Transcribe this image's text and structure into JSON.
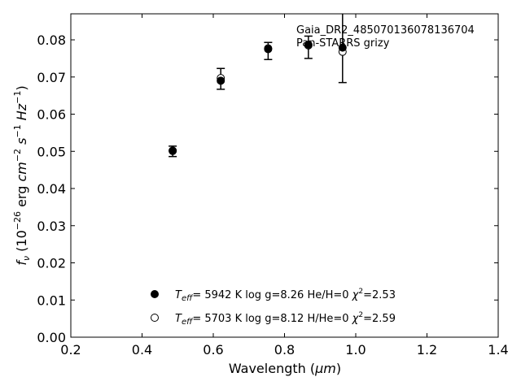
{
  "chart_data": {
    "type": "scatter",
    "xlabel_prefix": "Wavelength (",
    "xlabel_unit": "μm",
    "xlabel_suffix": ")",
    "xlim": [
      0.2,
      1.4
    ],
    "ylim": [
      0.0,
      0.087
    ],
    "xticks": [
      "0.2",
      "0.4",
      "0.6",
      "0.8",
      "1.0",
      "1.2",
      "1.4"
    ],
    "yticks": [
      "0.00",
      "0.01",
      "0.02",
      "0.03",
      "0.04",
      "0.05",
      "0.06",
      "0.07",
      "0.08"
    ],
    "annotations": [
      "Gaia_DR2_485070136078136704",
      "Pan-STARRS grizy"
    ],
    "observed": {
      "x": [
        0.486,
        0.621,
        0.754,
        0.867,
        0.963
      ],
      "y": [
        0.05,
        0.0695,
        0.077,
        0.078,
        0.079
      ],
      "err": [
        0.0014,
        0.0028,
        0.0023,
        0.003,
        0.0105
      ]
    },
    "series": [
      {
        "marker": "filled",
        "x": [
          0.486,
          0.621,
          0.754,
          0.867,
          0.963
        ],
        "y": [
          0.0501,
          0.069,
          0.0775,
          0.0787,
          0.0779
        ],
        "legend": {
          "teff_value": "5942",
          "logg": "8.26",
          "comp": "He/H=0",
          "chi2": "2.53"
        }
      },
      {
        "marker": "open",
        "x": [
          0.486,
          0.621,
          0.754,
          0.867,
          0.963
        ],
        "y": [
          0.0502,
          0.0697,
          0.0777,
          0.0785,
          0.0768
        ],
        "legend": {
          "teff_value": "5703",
          "logg": "8.12",
          "comp": "H/He=0",
          "chi2": "2.59"
        }
      }
    ]
  }
}
